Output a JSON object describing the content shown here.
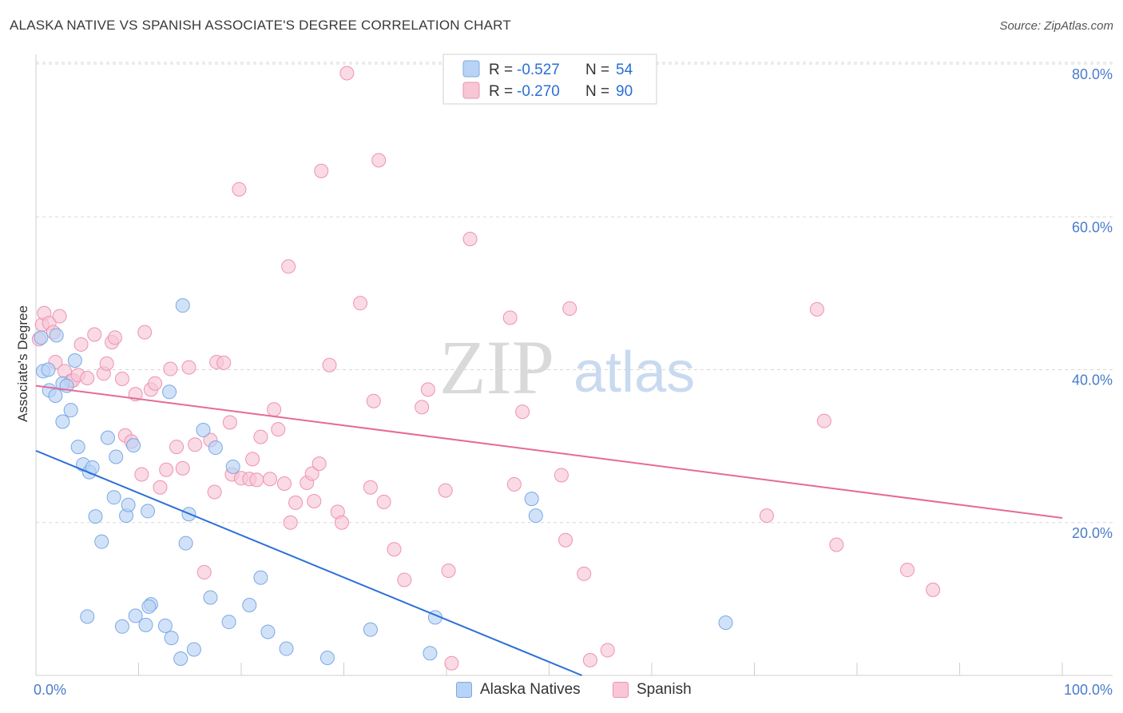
{
  "title": "ALASKA NATIVE VS SPANISH ASSOCIATE'S DEGREE CORRELATION CHART",
  "source": "Source: ZipAtlas.com",
  "watermark": {
    "zip": "ZIP",
    "atlas": "atlas"
  },
  "colors": {
    "blue_fill": "#b8d3f5",
    "blue_stroke": "#7aa9e6",
    "blue_line": "#2a6fd6",
    "pink_fill": "#f8c6d5",
    "pink_stroke": "#ee93b0",
    "pink_line": "#e56b93",
    "axis_label": "#4a7cc9",
    "grid": "#d8d8d8"
  },
  "legend_stats": [
    {
      "r_label": "R =",
      "r_value": "-0.527",
      "n_label": "N =",
      "n_value": "54",
      "series": "Alaska Natives"
    },
    {
      "r_label": "R =",
      "r_value": "-0.270",
      "n_label": "N =",
      "n_value": "90",
      "series": "Spanish"
    }
  ],
  "legend_bottom": [
    "Alaska Natives",
    "Spanish"
  ],
  "chart_data": {
    "type": "scatter",
    "title": "ALASKA NATIVE VS SPANISH ASSOCIATE'S DEGREE CORRELATION CHART",
    "xlabel": "",
    "ylabel": "Associate's Degree",
    "xlim": [
      0,
      100
    ],
    "ylim": [
      0,
      80
    ],
    "x_tick_labels": [
      "0.0%",
      "100.0%"
    ],
    "y_tick_labels": [
      "20.0%",
      "40.0%",
      "60.0%",
      "80.0%"
    ],
    "y_ticks": [
      20,
      40,
      60,
      80
    ],
    "grid": true,
    "legend_position": "top-center",
    "series": [
      {
        "name": "Alaska Natives",
        "points": [
          [
            0.5,
            44.2
          ],
          [
            0.7,
            39.8
          ],
          [
            1.2,
            40.0
          ],
          [
            1.3,
            37.3
          ],
          [
            1.9,
            36.6
          ],
          [
            2.0,
            44.5
          ],
          [
            2.6,
            38.2
          ],
          [
            2.6,
            33.2
          ],
          [
            3.0,
            37.9
          ],
          [
            3.4,
            34.7
          ],
          [
            3.8,
            41.2
          ],
          [
            4.1,
            29.9
          ],
          [
            4.6,
            27.6
          ],
          [
            5.2,
            26.6
          ],
          [
            5.5,
            27.2
          ],
          [
            5.8,
            20.8
          ],
          [
            6.4,
            17.5
          ],
          [
            7.0,
            31.1
          ],
          [
            7.6,
            23.3
          ],
          [
            7.8,
            28.6
          ],
          [
            8.4,
            6.4
          ],
          [
            8.8,
            20.9
          ],
          [
            9.0,
            22.3
          ],
          [
            9.5,
            30.1
          ],
          [
            9.7,
            7.8
          ],
          [
            10.7,
            6.6
          ],
          [
            10.9,
            21.5
          ],
          [
            11.2,
            9.3
          ],
          [
            12.6,
            6.5
          ],
          [
            13.0,
            37.1
          ],
          [
            13.2,
            4.9
          ],
          [
            14.1,
            2.2
          ],
          [
            14.3,
            48.4
          ],
          [
            14.6,
            17.3
          ],
          [
            14.9,
            21.1
          ],
          [
            15.4,
            3.4
          ],
          [
            16.3,
            32.1
          ],
          [
            17.0,
            10.2
          ],
          [
            17.5,
            29.8
          ],
          [
            18.8,
            7.0
          ],
          [
            19.2,
            27.3
          ],
          [
            20.8,
            9.2
          ],
          [
            21.9,
            12.8
          ],
          [
            22.6,
            5.7
          ],
          [
            24.4,
            3.5
          ],
          [
            28.4,
            2.3
          ],
          [
            32.6,
            6.0
          ],
          [
            38.4,
            2.9
          ],
          [
            38.9,
            7.6
          ],
          [
            48.3,
            23.1
          ],
          [
            48.7,
            20.9
          ],
          [
            67.2,
            6.9
          ],
          [
            5.0,
            7.7
          ],
          [
            11.0,
            9.0
          ]
        ],
        "trend": {
          "x": [
            0,
            53.2
          ],
          "y": [
            29.4,
            0
          ]
        }
      },
      {
        "name": "Spanish",
        "points": [
          [
            0.3,
            44.0
          ],
          [
            0.6,
            45.9
          ],
          [
            0.8,
            47.4
          ],
          [
            1.3,
            46.1
          ],
          [
            1.7,
            44.9
          ],
          [
            1.9,
            41.0
          ],
          [
            2.3,
            47.0
          ],
          [
            2.8,
            39.8
          ],
          [
            3.4,
            38.5
          ],
          [
            3.6,
            38.6
          ],
          [
            4.1,
            39.3
          ],
          [
            4.4,
            43.3
          ],
          [
            5.0,
            38.9
          ],
          [
            5.7,
            44.6
          ],
          [
            6.6,
            39.5
          ],
          [
            6.9,
            40.8
          ],
          [
            7.4,
            43.6
          ],
          [
            7.7,
            44.2
          ],
          [
            8.4,
            38.8
          ],
          [
            8.7,
            31.4
          ],
          [
            9.3,
            30.6
          ],
          [
            9.7,
            36.8
          ],
          [
            10.3,
            26.3
          ],
          [
            10.6,
            44.9
          ],
          [
            11.2,
            37.4
          ],
          [
            11.6,
            38.2
          ],
          [
            12.1,
            24.6
          ],
          [
            12.7,
            26.9
          ],
          [
            13.1,
            40.1
          ],
          [
            13.7,
            29.9
          ],
          [
            14.3,
            27.1
          ],
          [
            14.9,
            40.3
          ],
          [
            15.5,
            30.2
          ],
          [
            16.4,
            13.5
          ],
          [
            17.0,
            30.8
          ],
          [
            17.4,
            24.0
          ],
          [
            17.6,
            41.0
          ],
          [
            18.3,
            40.9
          ],
          [
            18.9,
            33.1
          ],
          [
            19.1,
            26.3
          ],
          [
            19.8,
            63.6
          ],
          [
            20.0,
            25.8
          ],
          [
            20.8,
            25.7
          ],
          [
            21.1,
            28.3
          ],
          [
            21.5,
            25.6
          ],
          [
            21.9,
            31.2
          ],
          [
            22.8,
            25.7
          ],
          [
            23.2,
            34.8
          ],
          [
            23.6,
            32.2
          ],
          [
            24.2,
            25.1
          ],
          [
            24.6,
            53.5
          ],
          [
            24.8,
            20.0
          ],
          [
            25.3,
            22.6
          ],
          [
            26.4,
            25.2
          ],
          [
            26.9,
            26.4
          ],
          [
            27.1,
            22.8
          ],
          [
            27.6,
            27.7
          ],
          [
            27.8,
            66.0
          ],
          [
            28.6,
            40.6
          ],
          [
            29.4,
            21.4
          ],
          [
            29.8,
            20.0
          ],
          [
            30.3,
            78.8
          ],
          [
            31.6,
            48.7
          ],
          [
            32.6,
            24.6
          ],
          [
            32.9,
            35.9
          ],
          [
            33.4,
            67.4
          ],
          [
            33.9,
            22.7
          ],
          [
            34.9,
            16.5
          ],
          [
            35.9,
            12.5
          ],
          [
            37.6,
            35.1
          ],
          [
            38.2,
            37.4
          ],
          [
            39.9,
            24.2
          ],
          [
            40.2,
            13.7
          ],
          [
            40.5,
            1.6
          ],
          [
            42.3,
            57.1
          ],
          [
            46.2,
            46.8
          ],
          [
            46.6,
            25.0
          ],
          [
            47.4,
            34.5
          ],
          [
            51.2,
            26.2
          ],
          [
            51.6,
            17.7
          ],
          [
            52.0,
            48.0
          ],
          [
            53.4,
            13.3
          ],
          [
            54.0,
            2.0
          ],
          [
            55.7,
            3.3
          ],
          [
            71.2,
            20.9
          ],
          [
            76.1,
            47.9
          ],
          [
            76.8,
            33.3
          ],
          [
            78.0,
            17.1
          ],
          [
            84.9,
            13.8
          ],
          [
            87.4,
            11.2
          ]
        ],
        "trend": {
          "x": [
            0,
            100
          ],
          "y": [
            37.9,
            20.6
          ]
        }
      }
    ]
  }
}
